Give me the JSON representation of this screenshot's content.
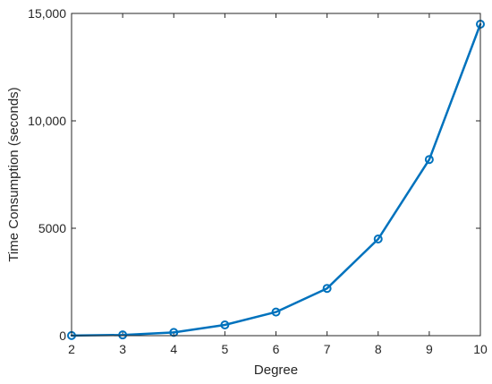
{
  "chart_data": {
    "type": "line",
    "title": "",
    "xlabel": "Degree",
    "ylabel": "Time Consumption (seconds)",
    "xlim": [
      2,
      10
    ],
    "ylim": [
      0,
      15000
    ],
    "x": [
      2,
      3,
      4,
      5,
      6,
      7,
      8,
      9,
      10
    ],
    "x_tick_labels": [
      "2",
      "3",
      "4",
      "5",
      "6",
      "7",
      "8",
      "9",
      "10"
    ],
    "y_ticks": [
      0,
      5000,
      10000,
      15000
    ],
    "y_tick_labels": [
      "0",
      "5000",
      "10,000",
      "15,000"
    ],
    "grid": false,
    "legend": "none",
    "series": [
      {
        "values": [
          5,
          35,
          150,
          500,
          1100,
          2200,
          4500,
          8200,
          14500
        ],
        "color": "#0072BD",
        "marker": "circle"
      }
    ]
  }
}
